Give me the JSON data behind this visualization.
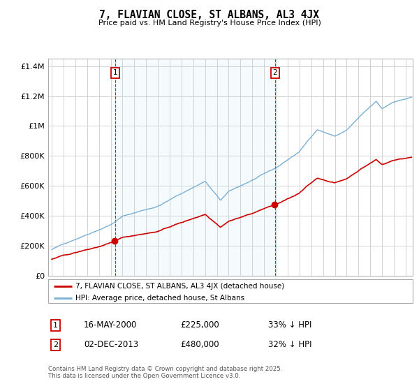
{
  "title": "7, FLAVIAN CLOSE, ST ALBANS, AL3 4JX",
  "subtitle": "Price paid vs. HM Land Registry's House Price Index (HPI)",
  "red_label": "7, FLAVIAN CLOSE, ST ALBANS, AL3 4JX (detached house)",
  "blue_label": "HPI: Average price, detached house, St Albans",
  "sale1_date": "16-MAY-2000",
  "sale1_price": 225000,
  "sale1_pct": "33% ↓ HPI",
  "sale2_date": "02-DEC-2013",
  "sale2_price": 480000,
  "sale2_pct": "32% ↓ HPI",
  "footnote": "Contains HM Land Registry data © Crown copyright and database right 2025.\nThis data is licensed under the Open Government Licence v3.0.",
  "red_color": "#cc0000",
  "blue_color": "#7ab0d4",
  "bg_shade_color": "#ddeeff",
  "grid_color": "#cccccc",
  "ylim": [
    0,
    1450000
  ],
  "ylabel_ticks": [
    0,
    200000,
    400000,
    600000,
    800000,
    1000000,
    1200000,
    1400000
  ],
  "ylabel_labels": [
    "£0",
    "£200K",
    "£400K",
    "£600K",
    "£800K",
    "£1M",
    "£1.2M",
    "£1.4M"
  ],
  "x_start_year": 1995,
  "x_end_year": 2025,
  "sale1_year": 2000.37,
  "sale2_year": 2013.92
}
